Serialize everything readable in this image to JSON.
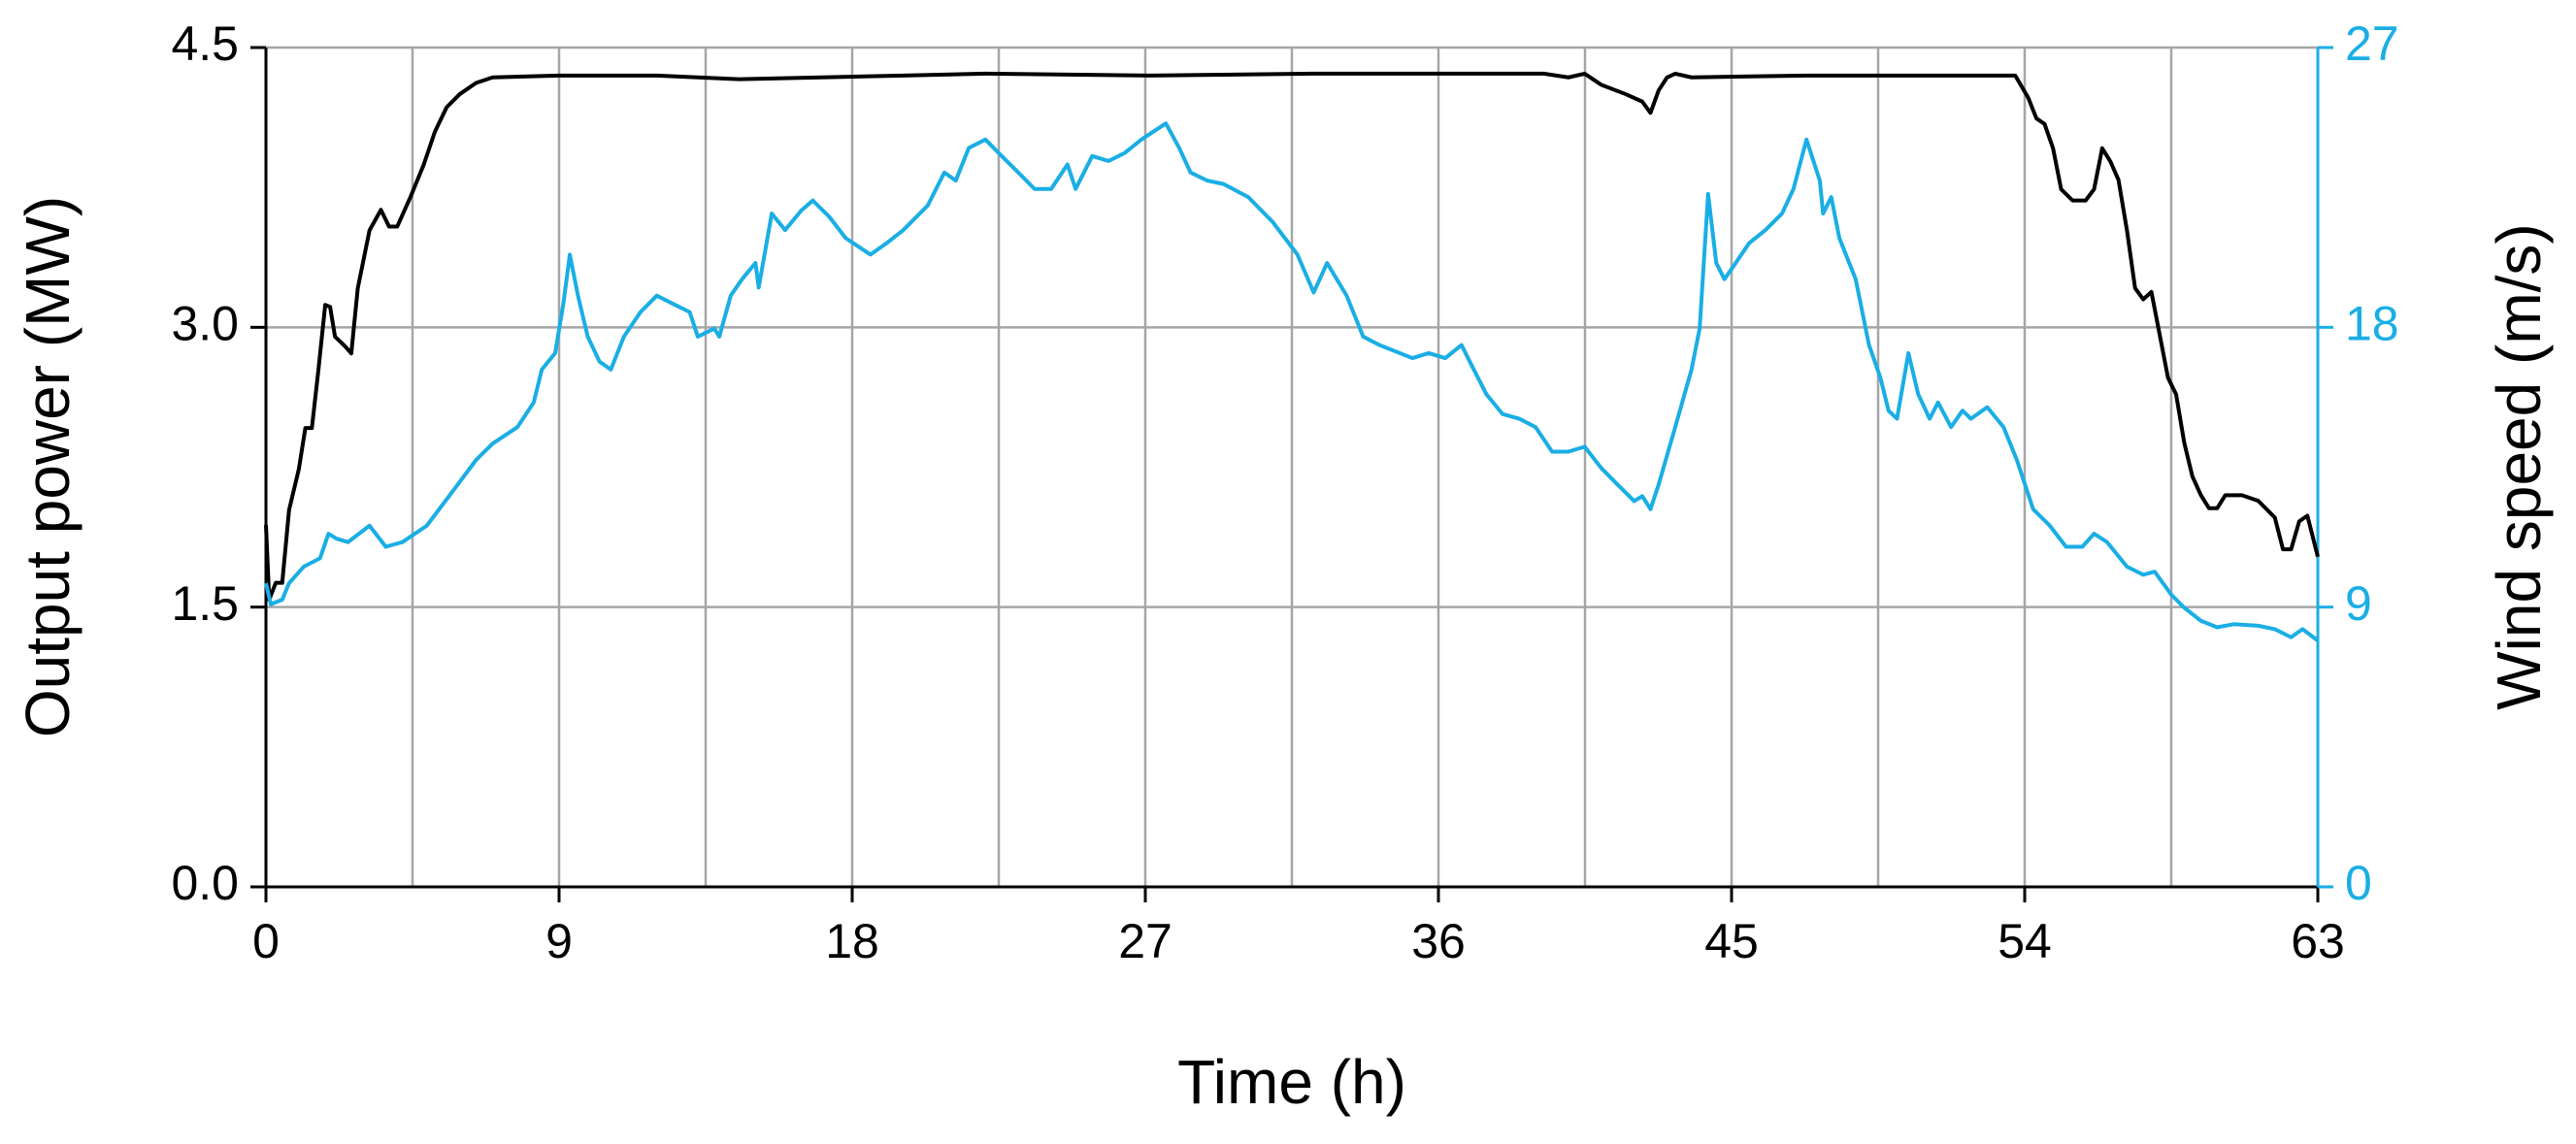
{
  "chart_data": {
    "type": "line",
    "xlabel": "Time (h)",
    "ylabel": "Output power (MW)",
    "y2label": "Wind speed (m/s)",
    "xlim": [
      0,
      63
    ],
    "xticks": [
      0,
      9,
      18,
      27,
      36,
      45,
      54,
      63
    ],
    "xminorgrid": [
      4.5,
      13.5,
      22.5,
      31.5,
      40.5,
      49.5,
      58.5
    ],
    "ylim": [
      0,
      4.5
    ],
    "yticks": [
      {
        "value": 0,
        "label": "0.0"
      },
      1.5,
      {
        "value": 3,
        "label": "3.0"
      },
      4.5
    ],
    "y2lim": [
      0,
      27
    ],
    "y2ticks": [
      0,
      9,
      18,
      27
    ],
    "grid": true,
    "ycolor": "#000000",
    "y2color": "#1aaee5",
    "series": [
      {
        "color": "#000000",
        "axis": "y",
        "x": [
          0,
          0.1,
          0.3,
          0.5,
          0.71,
          1.01,
          1.21,
          1.41,
          1.61,
          1.82,
          1.97,
          2.12,
          2.42,
          2.62,
          2.82,
          3.18,
          3.53,
          3.78,
          4.03,
          4.44,
          4.84,
          5.19,
          5.55,
          5.95,
          6.45,
          6.96,
          8.98,
          12.0,
          14.52,
          17.04,
          19.57,
          22.09,
          27.13,
          32.17,
          39.23,
          39.99,
          40.49,
          41.0,
          41.75,
          42.26,
          42.51,
          42.76,
          43.02,
          43.27,
          43.77,
          47.3,
          53.71,
          54.11,
          54.36,
          54.61,
          54.87,
          55.12,
          55.47,
          55.87,
          56.13,
          56.38,
          56.63,
          56.88,
          57.14,
          57.39,
          57.64,
          57.89,
          58.4,
          58.65,
          58.9,
          59.15,
          59.41,
          59.66,
          59.91,
          60.16,
          60.67,
          61.17,
          61.68,
          61.93,
          62.18,
          62.43,
          62.68,
          63
        ],
        "values": [
          1.94,
          1.54,
          1.63,
          1.63,
          2.02,
          2.24,
          2.46,
          2.46,
          2.77,
          3.12,
          3.11,
          2.95,
          2.9,
          2.86,
          3.21,
          3.52,
          3.63,
          3.54,
          3.54,
          3.7,
          3.87,
          4.05,
          4.18,
          4.25,
          4.31,
          4.34,
          4.35,
          4.35,
          4.33,
          4.34,
          4.35,
          4.36,
          4.35,
          4.36,
          4.36,
          4.34,
          4.36,
          4.3,
          4.25,
          4.21,
          4.15,
          4.27,
          4.34,
          4.36,
          4.34,
          4.35,
          4.35,
          4.23,
          4.12,
          4.09,
          3.96,
          3.74,
          3.68,
          3.68,
          3.74,
          3.96,
          3.89,
          3.79,
          3.52,
          3.21,
          3.15,
          3.19,
          2.73,
          2.64,
          2.38,
          2.2,
          2.1,
          2.03,
          2.03,
          2.1,
          2.1,
          2.07,
          1.98,
          1.81,
          1.81,
          1.96,
          1.99,
          1.77
        ]
      },
      {
        "color": "#1aaee5",
        "axis": "y2",
        "x": [
          0,
          0.15,
          0.5,
          0.71,
          1.16,
          1.66,
          1.92,
          2.17,
          2.52,
          3.18,
          3.68,
          4.19,
          4.94,
          5.7,
          6.45,
          6.96,
          7.72,
          8.22,
          8.47,
          8.88,
          9.13,
          9.33,
          9.58,
          9.88,
          10.24,
          10.59,
          10.99,
          11.5,
          12.0,
          12.51,
          13.01,
          13.26,
          13.77,
          13.92,
          14.27,
          14.62,
          15.03,
          15.13,
          15.53,
          15.94,
          16.44,
          16.79,
          17.3,
          17.8,
          18.56,
          19.06,
          19.57,
          20.32,
          20.83,
          21.18,
          21.58,
          22.09,
          22.59,
          23.1,
          23.6,
          24.11,
          24.61,
          24.86,
          25.37,
          25.87,
          26.37,
          26.88,
          27.63,
          28.04,
          28.39,
          28.9,
          29.4,
          30.16,
          30.91,
          31.67,
          32.17,
          32.58,
          33.18,
          33.69,
          34.19,
          35.2,
          35.7,
          36.21,
          36.71,
          36.96,
          37.47,
          37.97,
          38.48,
          38.98,
          39.49,
          39.99,
          40.49,
          41.0,
          41.5,
          42.01,
          42.26,
          42.51,
          42.76,
          43.27,
          43.77,
          44.02,
          44.28,
          44.53,
          44.78,
          45.03,
          45.54,
          46.04,
          46.55,
          46.9,
          47.3,
          47.71,
          47.81,
          48.06,
          48.31,
          48.81,
          49.22,
          49.57,
          49.82,
          50.08,
          50.43,
          50.73,
          51.08,
          51.34,
          51.74,
          52.09,
          52.35,
          52.85,
          53.35,
          53.76,
          54.26,
          54.77,
          55.27,
          55.77,
          56.13,
          56.53,
          57.14,
          57.64,
          57.99,
          58.5,
          58.9,
          59.41,
          59.91,
          60.41,
          61.17,
          61.68,
          62.18,
          62.53,
          63
        ],
        "values": [
          9.77,
          9.09,
          9.24,
          9.77,
          10.3,
          10.57,
          11.36,
          11.2,
          11.09,
          11.62,
          10.94,
          11.09,
          11.62,
          12.68,
          13.73,
          14.26,
          14.79,
          15.58,
          16.64,
          17.17,
          18.75,
          20.34,
          19.02,
          17.7,
          16.9,
          16.64,
          17.7,
          18.49,
          19.02,
          18.75,
          18.49,
          17.7,
          17.96,
          17.7,
          19.02,
          19.55,
          20.07,
          19.28,
          21.66,
          21.13,
          21.76,
          22.08,
          21.55,
          20.87,
          20.34,
          20.71,
          21.13,
          21.92,
          22.98,
          22.72,
          23.77,
          24.04,
          23.51,
          22.98,
          22.45,
          22.45,
          23.24,
          22.45,
          23.51,
          23.35,
          23.61,
          24.04,
          24.56,
          23.77,
          22.98,
          22.72,
          22.61,
          22.19,
          21.39,
          20.34,
          19.12,
          20.07,
          19.02,
          17.7,
          17.43,
          17.01,
          17.17,
          17.01,
          17.43,
          16.9,
          15.85,
          15.21,
          15.06,
          14.79,
          14.0,
          14.0,
          14.16,
          13.47,
          12.94,
          12.41,
          12.57,
          12.15,
          12.94,
          14.79,
          16.64,
          17.96,
          22.29,
          20.07,
          19.55,
          19.92,
          20.71,
          21.13,
          21.66,
          22.45,
          24.04,
          22.72,
          21.66,
          22.19,
          20.87,
          19.55,
          17.43,
          16.38,
          15.32,
          15.06,
          17.17,
          15.85,
          15.06,
          15.58,
          14.79,
          15.32,
          15.06,
          15.43,
          14.79,
          13.73,
          12.15,
          11.62,
          10.94,
          10.94,
          11.36,
          11.09,
          10.3,
          10.04,
          10.14,
          9.4,
          8.98,
          8.56,
          8.35,
          8.45,
          8.4,
          8.29,
          8.03,
          8.29,
          7.92
        ]
      }
    ]
  }
}
